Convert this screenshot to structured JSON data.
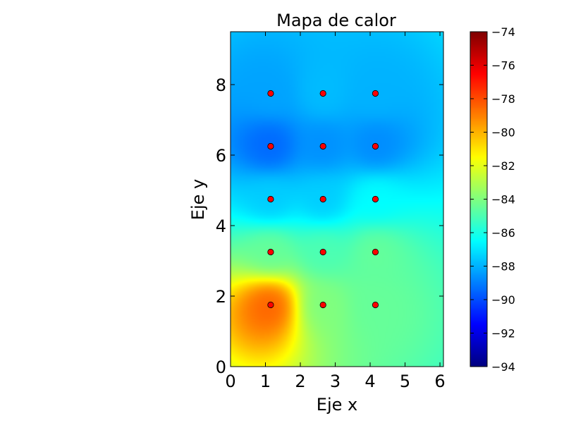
{
  "chart_data": {
    "type": "heatmap",
    "title": "Mapa de calor",
    "xlabel": "Eje x",
    "ylabel": "Eje y",
    "xlim": [
      0,
      6.1
    ],
    "ylim": [
      0,
      9.5
    ],
    "x_ticks": [
      0,
      1,
      2,
      3,
      4,
      5,
      6
    ],
    "y_ticks": [
      0,
      2,
      4,
      6,
      8
    ],
    "colorbar": {
      "colormap": "jet",
      "range": [
        -94,
        -74
      ],
      "ticks": [
        -74,
        -76,
        -78,
        -80,
        -82,
        -84,
        -86,
        -88,
        -90,
        -92,
        -94
      ],
      "tick_labels": [
        "−74",
        "−76",
        "−78",
        "−80",
        "−82",
        "−84",
        "−86",
        "−88",
        "−90",
        "−92",
        "−94"
      ]
    },
    "grid": false,
    "markers": {
      "color": "#ff0000",
      "points": [
        {
          "x": 1.15,
          "y": 7.75,
          "value": -88.3
        },
        {
          "x": 2.65,
          "y": 7.75,
          "value": -87.8
        },
        {
          "x": 4.15,
          "y": 7.75,
          "value": -88.0
        },
        {
          "x": 1.15,
          "y": 6.25,
          "value": -89.5
        },
        {
          "x": 2.65,
          "y": 6.25,
          "value": -88.7
        },
        {
          "x": 4.15,
          "y": 6.25,
          "value": -88.8
        },
        {
          "x": 1.15,
          "y": 4.75,
          "value": -87.5
        },
        {
          "x": 2.65,
          "y": 4.75,
          "value": -87.5
        },
        {
          "x": 4.15,
          "y": 4.75,
          "value": -86.5
        },
        {
          "x": 1.15,
          "y": 3.25,
          "value": -84.5
        },
        {
          "x": 2.65,
          "y": 3.25,
          "value": -85.0
        },
        {
          "x": 4.15,
          "y": 3.25,
          "value": -84.5
        },
        {
          "x": 1.15,
          "y": 1.75,
          "value": -78.3
        },
        {
          "x": 2.65,
          "y": 1.75,
          "value": -84.0
        },
        {
          "x": 4.15,
          "y": 1.75,
          "value": -84.5
        }
      ]
    }
  }
}
